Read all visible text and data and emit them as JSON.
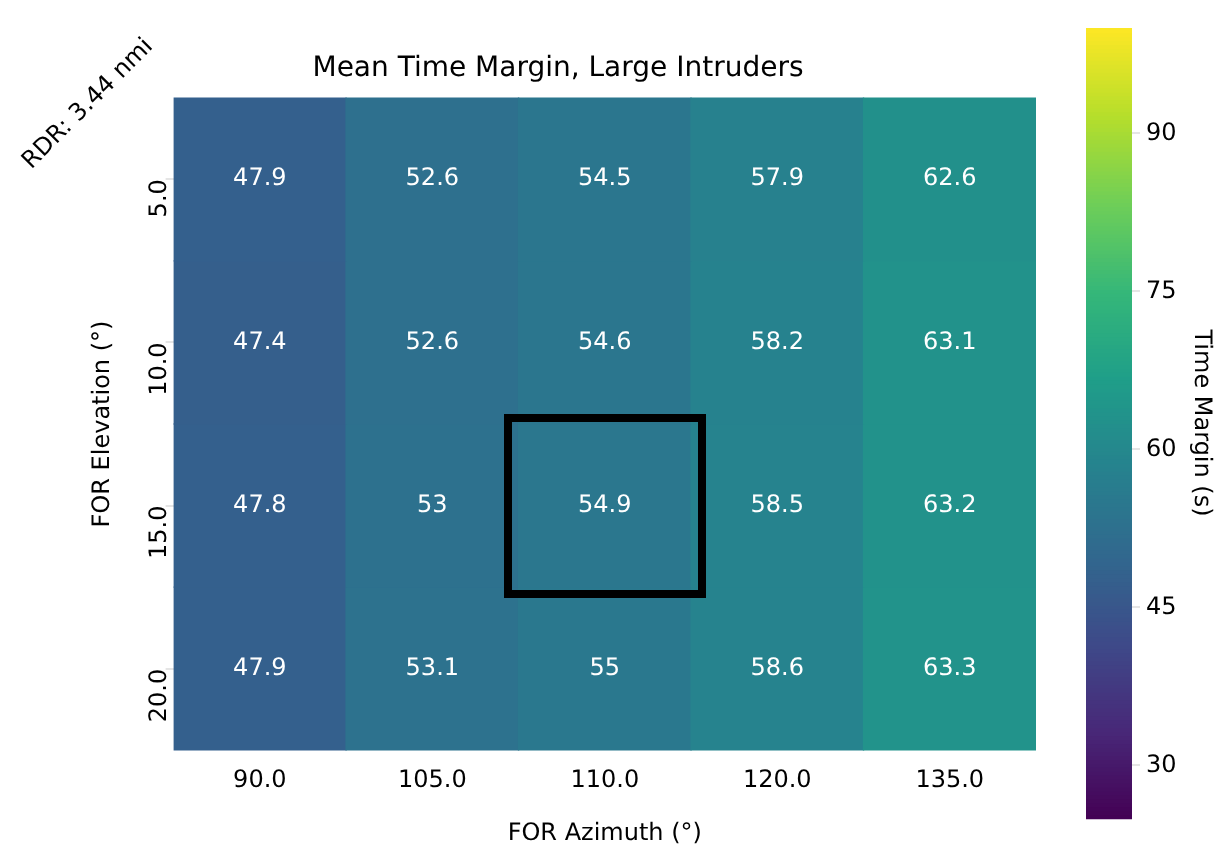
{
  "chart_data": {
    "type": "heatmap",
    "title": "Mean Time Margin, Large Intruders",
    "xlabel": "FOR Azimuth (°)",
    "ylabel": "FOR Elevation (°)",
    "clabel": "Time Margin (s)",
    "annotations": [
      "RDR: 3.44 nmi"
    ],
    "categories": [
      "90.0",
      "105.0",
      "110.0",
      "120.0",
      "135.0"
    ],
    "y_categories": [
      "5.0",
      "10.0",
      "15.0",
      "20.0"
    ],
    "cells": [
      [
        47.9,
        52.6,
        54.5,
        57.9,
        62.6
      ],
      [
        47.4,
        52.6,
        54.6,
        58.2,
        63.1
      ],
      [
        47.8,
        53,
        54.9,
        58.5,
        63.2
      ],
      [
        47.9,
        53.1,
        55,
        58.6,
        63.3
      ]
    ],
    "data_labels": true,
    "clim": [
      25,
      100
    ],
    "cticks": [
      30,
      45,
      60,
      75,
      90
    ]
  }
}
